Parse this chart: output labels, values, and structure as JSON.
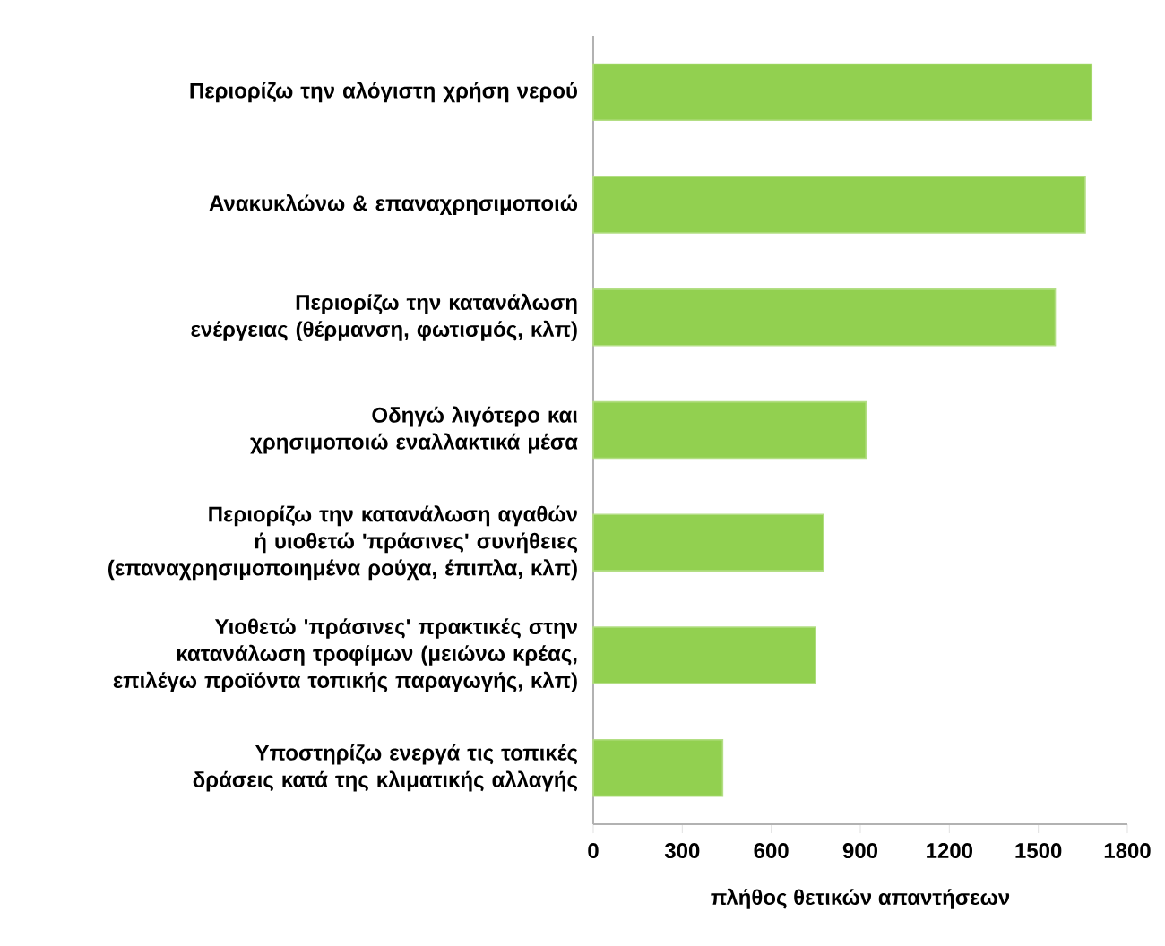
{
  "chart_data": {
    "type": "bar",
    "orientation": "horizontal",
    "categories": [
      "Περιορίζω την αλόγιστη χρήση νερού",
      "Ανακυκλώνω & επαναχρησιμοποιώ",
      "Περιορίζω την κατανάλωση ενέργειας (θέρμανση, φωτισμός, κλπ)",
      "Οδηγώ λιγότερο και χρησιμοποιώ εναλλακτικά μέσα",
      "Περιορίζω την κατανάλωση αγαθών ή υιοθετώ 'πράσινες' συνήθειες (επαναχρησιμοποιημένα ρούχα, έπιπλα, κλπ)",
      "Υιοθετώ 'πράσινες' πρακτικές στην κατανάλωση τροφίμων (μειώνω κρέας, επιλέγω προϊόντα τοπικής παραγωγής, κλπ)",
      "Υποστηρίζω ενεργά τις τοπικές δράσεις κατά της κλιματικής αλλαγής"
    ],
    "values": [
      1680,
      1658,
      1557,
      919,
      776,
      749,
      436
    ],
    "color": "#92d050",
    "xlim": [
      0,
      1800
    ],
    "xticks": [
      0,
      300,
      600,
      900,
      1200,
      1500,
      1800
    ],
    "xlabel": "πλήθος θετικών απαντήσεων"
  }
}
